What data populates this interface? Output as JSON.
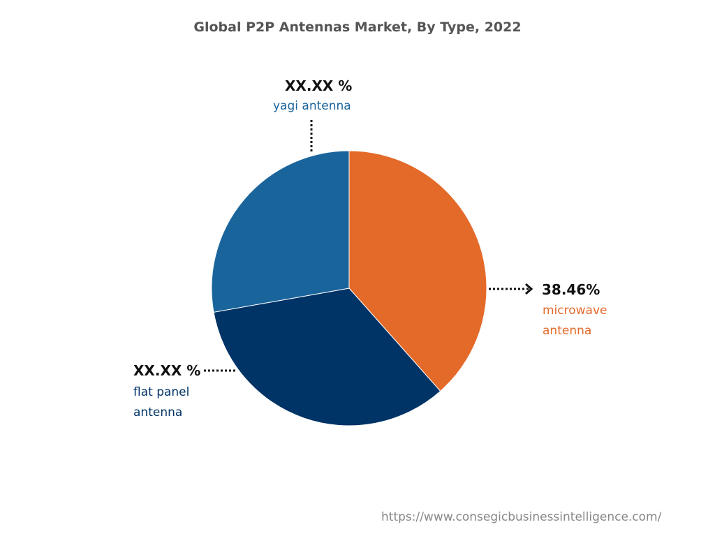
{
  "chart_data": {
    "type": "pie",
    "title": "Global P2P Antennas Market, By Type, 2022",
    "slices": [
      {
        "name": "microwave antenna",
        "label": "38.46%",
        "value": 38.46,
        "color": "#E46A29"
      },
      {
        "name": "flat panel antenna",
        "label": "XX.XX %",
        "value": 33.75,
        "color": "#003366"
      },
      {
        "name": "yagi antenna",
        "label": "XX.XX %",
        "value": 27.79,
        "color": "#1A649C"
      }
    ],
    "start_angle_deg": 0,
    "direction": "clockwise"
  },
  "labels": {
    "microwave_line1": "microwave",
    "microwave_line2": "antenna",
    "flat_line1": "flat panel",
    "flat_line2": "antenna",
    "yagi": "yagi antenna"
  },
  "source_url": "https://www.consegicbusinessintelligence.com/"
}
